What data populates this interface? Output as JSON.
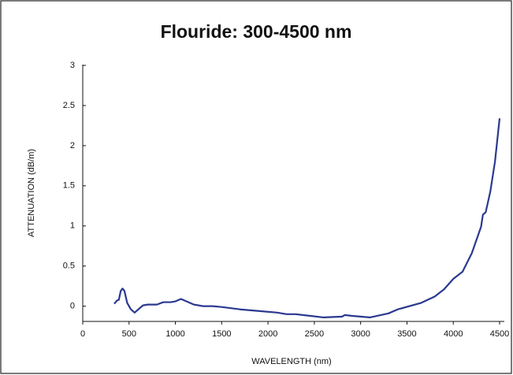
{
  "chart_data": {
    "type": "line",
    "title": "Flouride: 300-4500 nm",
    "x_label": "WAVELENGTH (nm)",
    "y_label": "ATTENUATION (dB/m)",
    "x": [
      340,
      370,
      390,
      410,
      430,
      450,
      480,
      520,
      560,
      600,
      650,
      700,
      800,
      870,
      950,
      1000,
      1060,
      1100,
      1200,
      1300,
      1400,
      1500,
      1700,
      1900,
      2100,
      2200,
      2300,
      2450,
      2600,
      2800,
      2830,
      2900,
      3100,
      3300,
      3400,
      3650,
      3800,
      3900,
      4000,
      4100,
      4200,
      4300,
      4320,
      4350,
      4400,
      4450,
      4500
    ],
    "series": [
      {
        "color": "#2b3990",
        "values": [
          0.03,
          0.07,
          0.08,
          0.19,
          0.22,
          0.19,
          0.04,
          -0.04,
          -0.08,
          -0.04,
          0.01,
          0.02,
          0.02,
          0.05,
          0.05,
          0.06,
          0.09,
          0.07,
          0.02,
          0,
          0,
          -0.01,
          -0.04,
          -0.06,
          -0.08,
          -0.1,
          -0.1,
          -0.12,
          -0.14,
          -0.13,
          -0.11,
          -0.12,
          -0.14,
          -0.09,
          -0.04,
          0.04,
          0.12,
          0.21,
          0.34,
          0.43,
          0.66,
          0.99,
          1.14,
          1.17,
          1.43,
          1.8,
          2.34
        ]
      }
    ],
    "xlim": [
      0,
      4500
    ],
    "xticks": [
      0,
      500,
      1000,
      1500,
      2000,
      2500,
      3000,
      3500,
      4000,
      4500
    ],
    "ylim": [
      -0.19,
      3
    ],
    "yticks": [
      0,
      0.5,
      1,
      1.5,
      2,
      2.5,
      3
    ]
  }
}
